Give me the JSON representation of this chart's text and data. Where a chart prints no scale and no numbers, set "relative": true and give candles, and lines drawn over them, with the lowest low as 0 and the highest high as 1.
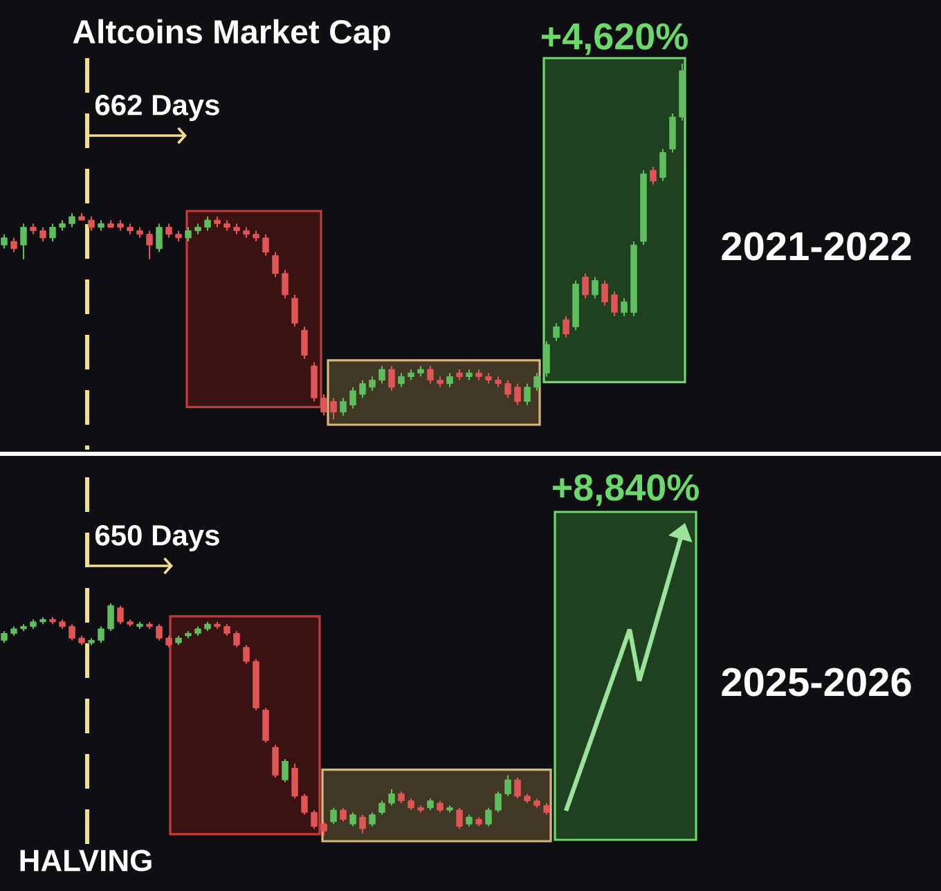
{
  "chart_data": [
    {
      "type": "candlestick",
      "title": "Altcoins Market Cap",
      "relative": true,
      "tick_labels": false,
      "categories": [
        null,
        null,
        null,
        null,
        null,
        null,
        null,
        null,
        null,
        null,
        null,
        null,
        null,
        null,
        null,
        null,
        null,
        null,
        null,
        null,
        null,
        null,
        null,
        null,
        null,
        null,
        null,
        null,
        null,
        null,
        null,
        null,
        null,
        null,
        null,
        null,
        null,
        null,
        null,
        null,
        null,
        null,
        null,
        null,
        null,
        null,
        null,
        null,
        null,
        null,
        null,
        null,
        null,
        null,
        null,
        null,
        null,
        null,
        null,
        null,
        null,
        null,
        null,
        null,
        null,
        null,
        null,
        null,
        null,
        null,
        null
      ],
      "ohlc": [
        [
          0.49,
          0.52,
          0.48,
          0.51
        ],
        [
          0.5,
          0.51,
          0.47,
          0.48
        ],
        [
          0.49,
          0.55,
          0.45,
          0.54
        ],
        [
          0.54,
          0.55,
          0.52,
          0.53
        ],
        [
          0.53,
          0.54,
          0.5,
          0.51
        ],
        [
          0.51,
          0.55,
          0.5,
          0.54
        ],
        [
          0.54,
          0.56,
          0.53,
          0.55
        ],
        [
          0.55,
          0.58,
          0.54,
          0.57
        ],
        [
          0.57,
          0.58,
          0.56,
          0.56
        ],
        [
          0.56,
          0.57,
          0.53,
          0.54
        ],
        [
          0.54,
          0.56,
          0.53,
          0.55
        ],
        [
          0.55,
          0.56,
          0.54,
          0.54
        ],
        [
          0.55,
          0.56,
          0.53,
          0.54
        ],
        [
          0.54,
          0.55,
          0.52,
          0.53
        ],
        [
          0.53,
          0.54,
          0.51,
          0.52
        ],
        [
          0.52,
          0.53,
          0.45,
          0.49
        ],
        [
          0.48,
          0.55,
          0.47,
          0.54
        ],
        [
          0.54,
          0.55,
          0.51,
          0.52
        ],
        [
          0.52,
          0.53,
          0.5,
          0.51
        ],
        [
          0.51,
          0.54,
          0.5,
          0.53
        ],
        [
          0.53,
          0.55,
          0.52,
          0.54
        ],
        [
          0.54,
          0.57,
          0.53,
          0.56
        ],
        [
          0.56,
          0.57,
          0.54,
          0.55
        ],
        [
          0.55,
          0.56,
          0.53,
          0.54
        ],
        [
          0.54,
          0.55,
          0.52,
          0.53
        ],
        [
          0.53,
          0.54,
          0.51,
          0.52
        ],
        [
          0.52,
          0.53,
          0.5,
          0.51
        ],
        [
          0.51,
          0.52,
          0.46,
          0.47
        ],
        [
          0.46,
          0.47,
          0.4,
          0.41
        ],
        [
          0.41,
          0.42,
          0.34,
          0.35
        ],
        [
          0.34,
          0.35,
          0.26,
          0.27
        ],
        [
          0.25,
          0.26,
          0.17,
          0.18
        ],
        [
          0.15,
          0.16,
          0.05,
          0.06
        ],
        [
          0.06,
          0.07,
          0.01,
          0.02
        ],
        [
          0.05,
          0.06,
          0.0,
          0.02
        ],
        [
          0.02,
          0.06,
          0.01,
          0.05
        ],
        [
          0.04,
          0.09,
          0.03,
          0.08
        ],
        [
          0.07,
          0.11,
          0.06,
          0.1
        ],
        [
          0.09,
          0.12,
          0.08,
          0.11
        ],
        [
          0.11,
          0.15,
          0.1,
          0.14
        ],
        [
          0.14,
          0.15,
          0.08,
          0.09
        ],
        [
          0.1,
          0.13,
          0.09,
          0.12
        ],
        [
          0.12,
          0.14,
          0.11,
          0.13
        ],
        [
          0.13,
          0.15,
          0.12,
          0.14
        ],
        [
          0.14,
          0.15,
          0.1,
          0.11
        ],
        [
          0.11,
          0.12,
          0.09,
          0.1
        ],
        [
          0.1,
          0.13,
          0.09,
          0.12
        ],
        [
          0.13,
          0.14,
          0.11,
          0.12
        ],
        [
          0.12,
          0.14,
          0.11,
          0.13
        ],
        [
          0.13,
          0.14,
          0.11,
          0.12
        ],
        [
          0.12,
          0.13,
          0.1,
          0.11
        ],
        [
          0.11,
          0.12,
          0.09,
          0.1
        ],
        [
          0.1,
          0.11,
          0.06,
          0.07
        ],
        [
          0.09,
          0.1,
          0.04,
          0.05
        ],
        [
          0.05,
          0.1,
          0.04,
          0.09
        ],
        [
          0.09,
          0.13,
          0.08,
          0.12
        ],
        [
          0.13,
          0.22,
          0.12,
          0.21
        ],
        [
          0.23,
          0.27,
          0.22,
          0.26
        ],
        [
          0.28,
          0.29,
          0.23,
          0.24
        ],
        [
          0.26,
          0.39,
          0.25,
          0.38
        ],
        [
          0.4,
          0.41,
          0.34,
          0.35
        ],
        [
          0.35,
          0.4,
          0.34,
          0.39
        ],
        [
          0.38,
          0.39,
          0.32,
          0.33
        ],
        [
          0.35,
          0.36,
          0.29,
          0.3
        ],
        [
          0.3,
          0.34,
          0.29,
          0.33
        ],
        [
          0.3,
          0.5,
          0.29,
          0.49
        ],
        [
          0.5,
          0.7,
          0.49,
          0.69
        ],
        [
          0.7,
          0.71,
          0.66,
          0.67
        ],
        [
          0.68,
          0.76,
          0.67,
          0.75
        ],
        [
          0.76,
          0.86,
          0.75,
          0.85
        ],
        [
          0.85,
          1.0,
          0.84,
          0.98
        ]
      ],
      "colors": [
        "#5fbf5f",
        "#e05555",
        "#5fbf5f",
        "#e05555",
        "#e05555",
        "#5fbf5f",
        "#5fbf5f",
        "#5fbf5f",
        "#e05555",
        "#e05555",
        "#5fbf5f",
        "#e05555",
        "#e05555",
        "#e05555",
        "#e05555",
        "#e05555",
        "#5fbf5f",
        "#e05555",
        "#e05555",
        "#5fbf5f",
        "#5fbf5f",
        "#5fbf5f",
        "#e05555",
        "#e05555",
        "#e05555",
        "#e05555",
        "#e05555",
        "#e05555",
        "#e05555",
        "#e05555",
        "#e05555",
        "#e05555",
        "#e05555",
        "#e05555",
        "#e05555",
        "#5fbf5f",
        "#5fbf5f",
        "#5fbf5f",
        "#5fbf5f",
        "#5fbf5f",
        "#e05555",
        "#5fbf5f",
        "#5fbf5f",
        "#5fbf5f",
        "#e05555",
        "#e05555",
        "#5fbf5f",
        "#e05555",
        "#5fbf5f",
        "#e05555",
        "#e05555",
        "#e05555",
        "#e05555",
        "#e05555",
        "#5fbf5f",
        "#5fbf5f",
        "#5fbf5f",
        "#5fbf5f",
        "#e05555",
        "#5fbf5f",
        "#e05555",
        "#5fbf5f",
        "#e05555",
        "#e05555",
        "#5fbf5f",
        "#5fbf5f",
        "#5fbf5f",
        "#e05555",
        "#5fbf5f",
        "#5fbf5f",
        "#5fbf5f"
      ],
      "annotations": [
        "662 Days",
        "+4,620%",
        "2021-2022"
      ]
    },
    {
      "type": "candlestick",
      "relative": true,
      "tick_labels": false,
      "categories": [
        null,
        null,
        null,
        null,
        null,
        null,
        null,
        null,
        null,
        null,
        null,
        null,
        null,
        null,
        null,
        null,
        null,
        null,
        null,
        null,
        null,
        null,
        null,
        null,
        null,
        null,
        null,
        null,
        null,
        null,
        null,
        null,
        null,
        null,
        null,
        null,
        null,
        null,
        null,
        null,
        null,
        null,
        null,
        null,
        null,
        null,
        null,
        null,
        null,
        null,
        null,
        null,
        null,
        null,
        null,
        null,
        null
      ],
      "ohlc": [
        [
          0.84,
          0.88,
          0.83,
          0.87
        ],
        [
          0.87,
          0.9,
          0.86,
          0.89
        ],
        [
          0.89,
          0.91,
          0.88,
          0.9
        ],
        [
          0.9,
          0.93,
          0.89,
          0.92
        ],
        [
          0.92,
          0.94,
          0.91,
          0.93
        ],
        [
          0.93,
          0.94,
          0.91,
          0.92
        ],
        [
          0.92,
          0.93,
          0.89,
          0.9
        ],
        [
          0.9,
          0.91,
          0.84,
          0.85
        ],
        [
          0.85,
          0.86,
          0.82,
          0.83
        ],
        [
          0.83,
          0.85,
          0.82,
          0.84
        ],
        [
          0.84,
          0.9,
          0.83,
          0.89
        ],
        [
          0.89,
          1.0,
          0.88,
          0.99
        ],
        [
          0.98,
          0.99,
          0.91,
          0.92
        ],
        [
          0.92,
          0.93,
          0.9,
          0.91
        ],
        [
          0.9,
          0.92,
          0.89,
          0.91
        ],
        [
          0.91,
          0.92,
          0.89,
          0.9
        ],
        [
          0.9,
          0.91,
          0.84,
          0.85
        ],
        [
          0.85,
          0.86,
          0.81,
          0.82
        ],
        [
          0.83,
          0.86,
          0.82,
          0.85
        ],
        [
          0.86,
          0.88,
          0.85,
          0.87
        ],
        [
          0.87,
          0.9,
          0.86,
          0.89
        ],
        [
          0.89,
          0.92,
          0.88,
          0.91
        ],
        [
          0.91,
          0.92,
          0.89,
          0.9
        ],
        [
          0.9,
          0.91,
          0.86,
          0.87
        ],
        [
          0.87,
          0.88,
          0.81,
          0.82
        ],
        [
          0.81,
          0.82,
          0.74,
          0.75
        ],
        [
          0.75,
          0.76,
          0.54,
          0.55
        ],
        [
          0.54,
          0.55,
          0.4,
          0.41
        ],
        [
          0.38,
          0.39,
          0.25,
          0.26
        ],
        [
          0.24,
          0.33,
          0.23,
          0.32
        ],
        [
          0.29,
          0.31,
          0.16,
          0.17
        ],
        [
          0.17,
          0.18,
          0.09,
          0.1
        ],
        [
          0.1,
          0.11,
          0.03,
          0.04
        ],
        [
          0.05,
          0.06,
          0.0,
          0.02
        ],
        [
          0.06,
          0.12,
          0.05,
          0.11
        ],
        [
          0.11,
          0.12,
          0.06,
          0.07
        ],
        [
          0.05,
          0.1,
          0.04,
          0.09
        ],
        [
          0.08,
          0.09,
          0.01,
          0.03
        ],
        [
          0.05,
          0.1,
          0.04,
          0.09
        ],
        [
          0.1,
          0.15,
          0.09,
          0.14
        ],
        [
          0.14,
          0.2,
          0.13,
          0.18
        ],
        [
          0.18,
          0.19,
          0.14,
          0.15
        ],
        [
          0.15,
          0.16,
          0.11,
          0.12
        ],
        [
          0.12,
          0.13,
          0.1,
          0.11
        ],
        [
          0.12,
          0.16,
          0.11,
          0.15
        ],
        [
          0.14,
          0.15,
          0.1,
          0.11
        ],
        [
          0.11,
          0.13,
          0.1,
          0.12
        ],
        [
          0.11,
          0.12,
          0.03,
          0.04
        ],
        [
          0.05,
          0.09,
          0.04,
          0.08
        ],
        [
          0.07,
          0.08,
          0.04,
          0.05
        ],
        [
          0.05,
          0.12,
          0.04,
          0.11
        ],
        [
          0.11,
          0.19,
          0.1,
          0.18
        ],
        [
          0.18,
          0.26,
          0.17,
          0.24
        ],
        [
          0.24,
          0.25,
          0.16,
          0.17
        ],
        [
          0.17,
          0.18,
          0.14,
          0.15
        ],
        [
          0.15,
          0.16,
          0.12,
          0.13
        ],
        [
          0.13,
          0.14,
          0.09,
          0.1
        ]
      ],
      "colors": [
        "#5fbf5f",
        "#5fbf5f",
        "#5fbf5f",
        "#5fbf5f",
        "#5fbf5f",
        "#e05555",
        "#e05555",
        "#e05555",
        "#e05555",
        "#5fbf5f",
        "#5fbf5f",
        "#5fbf5f",
        "#e05555",
        "#e05555",
        "#5fbf5f",
        "#e05555",
        "#e05555",
        "#e05555",
        "#5fbf5f",
        "#5fbf5f",
        "#5fbf5f",
        "#5fbf5f",
        "#e05555",
        "#e05555",
        "#e05555",
        "#e05555",
        "#e05555",
        "#e05555",
        "#e05555",
        "#5fbf5f",
        "#e05555",
        "#e05555",
        "#e05555",
        "#e05555",
        "#5fbf5f",
        "#e05555",
        "#5fbf5f",
        "#e05555",
        "#5fbf5f",
        "#5fbf5f",
        "#5fbf5f",
        "#e05555",
        "#e05555",
        "#e05555",
        "#5fbf5f",
        "#e05555",
        "#5fbf5f",
        "#e05555",
        "#5fbf5f",
        "#e05555",
        "#5fbf5f",
        "#5fbf5f",
        "#5fbf5f",
        "#e05555",
        "#e05555",
        "#e05555",
        "#e05555"
      ],
      "annotations": [
        "650 Days",
        "+8,840%",
        "HALVING",
        "2025-2026"
      ]
    }
  ]
}
